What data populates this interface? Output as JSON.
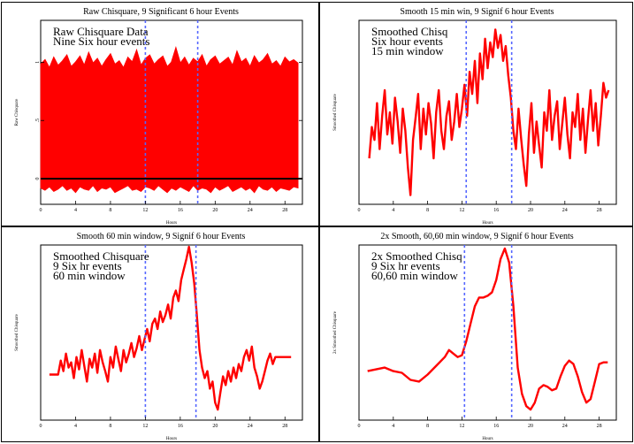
{
  "chart_data": [
    {
      "id": "p1",
      "type": "line",
      "title": "Raw Chisquare, 9 Significant 6 hour Events",
      "xlabel": "Hours",
      "ylabel": "Raw Chisquare",
      "xlim": [
        0,
        30
      ],
      "ylim": [
        -0.22,
        1.36
      ],
      "xticks": [
        0,
        4,
        8,
        12,
        16,
        20,
        24,
        28
      ],
      "xtick_labels": [
        "0",
        "4",
        "8",
        "12",
        "16",
        "20",
        "24",
        "28"
      ],
      "yticks": [
        0,
        0.5,
        1.0
      ],
      "ytick_labels": [
        "0",
        ".5",
        "1"
      ],
      "annotations": [
        "Raw Chisquare Data",
        "Nine Six hour events"
      ],
      "event_lines_x": [
        12,
        18
      ],
      "series_color": "#ff0000",
      "baseline_y": 0,
      "series": [
        {
          "x": [
            0,
            0.5,
            1,
            1.5,
            2,
            2.5,
            3,
            3.5,
            4,
            4.5,
            5,
            5.5,
            6,
            6.5,
            7,
            7.5,
            8,
            8.5,
            9,
            9.5,
            10,
            10.5,
            11,
            11.5,
            12,
            12.5,
            13,
            13.5,
            14,
            14.5,
            15,
            15.5,
            16,
            16.5,
            17,
            17.5,
            18,
            18.5,
            19,
            19.5,
            20,
            20.5,
            21,
            21.5,
            22,
            22.5,
            23,
            23.5,
            24,
            24.5,
            25,
            25.5,
            26,
            26.5,
            27,
            27.5,
            28,
            28.5,
            29,
            29.5
          ],
          "upper": [
            0.98,
            1.02,
            0.95,
            1.04,
            0.97,
            1.01,
            1.06,
            0.96,
            1.0,
            1.05,
            0.97,
            1.08,
            0.99,
            1.03,
            0.96,
            1.02,
            1.07,
            0.98,
            1.01,
            0.95,
            1.04,
            1.0,
            1.1,
            0.97,
            1.03,
            1.06,
            0.98,
            1.02,
            1.05,
            0.96,
            1.0,
            1.12,
            0.99,
            1.04,
            0.97,
            1.03,
            1.0,
            1.06,
            0.96,
            1.02,
            1.05,
            0.98,
            1.01,
            1.04,
            0.97,
            1.09,
            1.0,
            1.03,
            0.96,
            1.05,
            0.99,
            1.02,
            1.07,
            0.98,
            1.01,
            0.96,
            1.04,
            1.0,
            1.02,
            0.99
          ],
          "lower": [
            -0.08,
            -0.1,
            -0.07,
            -0.11,
            -0.09,
            -0.06,
            -0.1,
            -0.08,
            -0.12,
            -0.07,
            -0.09,
            -0.1,
            -0.06,
            -0.11,
            -0.08,
            -0.09,
            -0.07,
            -0.12,
            -0.1,
            -0.08,
            -0.06,
            -0.1,
            -0.09,
            -0.11,
            -0.07,
            -0.08,
            -0.1,
            -0.06,
            -0.09,
            -0.12,
            -0.08,
            -0.1,
            -0.07,
            -0.09,
            -0.11,
            -0.06,
            -0.1,
            -0.08,
            -0.09,
            -0.12,
            -0.07,
            -0.1,
            -0.08,
            -0.06,
            -0.11,
            -0.09,
            -0.07,
            -0.1,
            -0.08,
            -0.12,
            -0.06,
            -0.09,
            -0.1,
            -0.07,
            -0.11,
            -0.08,
            -0.09,
            -0.1,
            -0.07,
            -0.08
          ]
        }
      ]
    },
    {
      "id": "p2",
      "type": "line",
      "title": "Smooth 15 min win, 9 Signif 6 hour Events",
      "xlabel": "Hours",
      "ylabel": "Smoothed Chisquare",
      "xlim": [
        0,
        30
      ],
      "ylim": [
        0,
        1
      ],
      "xticks": [
        0,
        4,
        8,
        12,
        16,
        20,
        24,
        28
      ],
      "xtick_labels": [
        "0",
        "4",
        "8",
        "12",
        "16",
        "20",
        "24",
        "28"
      ],
      "annotations": [
        "Smoothed Chisq",
        "Six hour events",
        "15 min window"
      ],
      "event_lines_x": [
        12.5,
        17.8
      ],
      "series_color": "#ff0000",
      "series": [
        {
          "x": [
            1.2,
            1.5,
            1.8,
            2.1,
            2.4,
            2.7,
            3.0,
            3.3,
            3.6,
            3.9,
            4.2,
            4.5,
            4.8,
            5.1,
            5.4,
            5.7,
            6.0,
            6.3,
            6.6,
            6.9,
            7.2,
            7.5,
            7.8,
            8.1,
            8.4,
            8.7,
            9.0,
            9.3,
            9.6,
            9.9,
            10.2,
            10.5,
            10.8,
            11.1,
            11.4,
            11.7,
            12.0,
            12.3,
            12.6,
            12.9,
            13.2,
            13.5,
            13.8,
            14.1,
            14.4,
            14.7,
            15.0,
            15.3,
            15.6,
            15.9,
            16.2,
            16.5,
            16.8,
            17.1,
            17.4,
            17.7,
            18.0,
            18.3,
            18.6,
            18.9,
            19.2,
            19.5,
            19.8,
            20.1,
            20.4,
            20.7,
            21.0,
            21.3,
            21.6,
            21.9,
            22.2,
            22.5,
            22.8,
            23.1,
            23.4,
            23.7,
            24.0,
            24.3,
            24.6,
            24.9,
            25.2,
            25.5,
            25.8,
            26.1,
            26.4,
            26.7,
            27.0,
            27.3,
            27.6,
            27.9,
            28.2,
            28.5,
            28.8,
            29.1
          ],
          "y": [
            0.25,
            0.42,
            0.35,
            0.55,
            0.3,
            0.48,
            0.62,
            0.38,
            0.5,
            0.33,
            0.58,
            0.45,
            0.28,
            0.52,
            0.4,
            0.2,
            0.05,
            0.35,
            0.47,
            0.6,
            0.3,
            0.52,
            0.38,
            0.55,
            0.44,
            0.25,
            0.5,
            0.62,
            0.4,
            0.3,
            0.48,
            0.56,
            0.35,
            0.45,
            0.6,
            0.42,
            0.52,
            0.65,
            0.48,
            0.72,
            0.6,
            0.78,
            0.55,
            0.82,
            0.68,
            0.9,
            0.74,
            0.88,
            0.8,
            0.95,
            0.85,
            0.92,
            0.78,
            0.86,
            0.7,
            0.58,
            0.4,
            0.3,
            0.52,
            0.36,
            0.22,
            0.1,
            0.38,
            0.55,
            0.28,
            0.45,
            0.32,
            0.2,
            0.5,
            0.4,
            0.62,
            0.35,
            0.48,
            0.56,
            0.3,
            0.44,
            0.58,
            0.38,
            0.25,
            0.5,
            0.42,
            0.6,
            0.35,
            0.52,
            0.28,
            0.46,
            0.62,
            0.4,
            0.55,
            0.32,
            0.48,
            0.66,
            0.58,
            0.62
          ]
        }
      ]
    },
    {
      "id": "p3",
      "type": "line",
      "title": "Smooth 60 min window, 9 Signif 6 hour Events",
      "xlabel": "Hours",
      "ylabel": "Smoothed Chisquare",
      "xlim": [
        0,
        30
      ],
      "ylim": [
        0,
        1
      ],
      "xticks": [
        0,
        4,
        8,
        12,
        16,
        20,
        24,
        28
      ],
      "xtick_labels": [
        "0",
        "4",
        "8",
        "12",
        "16",
        "20",
        "24",
        "28"
      ],
      "annotations": [
        "Smoothed Chisquare",
        "9 Six hr events",
        "60 min window"
      ],
      "event_lines_x": [
        12,
        17.8
      ],
      "series_color": "#ff0000",
      "series": [
        {
          "x": [
            1.0,
            1.5,
            2.0,
            2.3,
            2.6,
            2.9,
            3.2,
            3.5,
            3.8,
            4.1,
            4.4,
            4.7,
            5.0,
            5.3,
            5.6,
            5.9,
            6.2,
            6.5,
            6.8,
            7.1,
            7.4,
            7.7,
            8.0,
            8.3,
            8.6,
            8.9,
            9.2,
            9.5,
            9.8,
            10.1,
            10.4,
            10.7,
            11.0,
            11.3,
            11.6,
            11.9,
            12.2,
            12.5,
            12.8,
            13.1,
            13.4,
            13.7,
            14.0,
            14.3,
            14.6,
            14.9,
            15.2,
            15.5,
            15.8,
            16.1,
            16.4,
            16.7,
            17.0,
            17.3,
            17.6,
            17.9,
            18.2,
            18.5,
            18.8,
            19.1,
            19.4,
            19.7,
            20.0,
            20.3,
            20.6,
            20.9,
            21.2,
            21.5,
            21.8,
            22.1,
            22.4,
            22.7,
            23.0,
            23.3,
            23.6,
            23.9,
            24.2,
            24.5,
            24.8,
            25.1,
            25.4,
            25.7,
            26.0,
            26.3,
            26.6,
            26.9,
            27.2,
            27.5,
            27.8,
            28.1,
            28.4,
            28.7
          ],
          "y": [
            0.26,
            0.26,
            0.26,
            0.34,
            0.28,
            0.38,
            0.3,
            0.33,
            0.24,
            0.36,
            0.29,
            0.4,
            0.31,
            0.22,
            0.35,
            0.3,
            0.38,
            0.27,
            0.4,
            0.33,
            0.28,
            0.22,
            0.36,
            0.3,
            0.42,
            0.35,
            0.28,
            0.4,
            0.33,
            0.38,
            0.44,
            0.36,
            0.41,
            0.48,
            0.4,
            0.46,
            0.52,
            0.45,
            0.55,
            0.58,
            0.52,
            0.62,
            0.56,
            0.6,
            0.66,
            0.58,
            0.7,
            0.74,
            0.68,
            0.8,
            0.86,
            0.92,
            0.99,
            0.9,
            0.78,
            0.6,
            0.4,
            0.3,
            0.24,
            0.28,
            0.18,
            0.22,
            0.1,
            0.06,
            0.16,
            0.25,
            0.2,
            0.28,
            0.22,
            0.3,
            0.24,
            0.32,
            0.28,
            0.36,
            0.4,
            0.34,
            0.42,
            0.3,
            0.25,
            0.18,
            0.22,
            0.28,
            0.34,
            0.38,
            0.32,
            0.36,
            0.36,
            0.36,
            0.36,
            0.36,
            0.36,
            0.36
          ]
        }
      ]
    },
    {
      "id": "p4",
      "type": "line",
      "title": "2x Smooth, 60,60 min window, 9 Signif 6 hour Events",
      "xlabel": "Hours",
      "ylabel": "2x Smoothed Chisquare",
      "xlim": [
        0,
        30
      ],
      "ylim": [
        0,
        1
      ],
      "xticks": [
        0,
        4,
        8,
        12,
        16,
        20,
        24,
        28
      ],
      "xtick_labels": [
        "0",
        "4",
        "8",
        "12",
        "16",
        "20",
        "24",
        "28"
      ],
      "annotations": [
        "2x Smoothed Chisq",
        "9 Six hr events",
        "60,60 min window"
      ],
      "event_lines_x": [
        12.3,
        17.8
      ],
      "series_color": "#ff0000",
      "series": [
        {
          "x": [
            1.0,
            2.0,
            3.0,
            4.0,
            5.0,
            6.0,
            7.0,
            8.0,
            9.0,
            10.0,
            10.5,
            11.0,
            11.5,
            12.0,
            12.5,
            13.0,
            13.5,
            14.0,
            14.5,
            15.0,
            15.5,
            16.0,
            16.5,
            17.0,
            17.5,
            18.0,
            18.5,
            19.0,
            19.5,
            20.0,
            20.5,
            21.0,
            21.5,
            22.0,
            22.5,
            23.0,
            23.5,
            24.0,
            24.5,
            25.0,
            25.5,
            26.0,
            26.5,
            27.0,
            27.5,
            28.0,
            28.5,
            29.0
          ],
          "y": [
            0.28,
            0.29,
            0.3,
            0.28,
            0.27,
            0.23,
            0.22,
            0.26,
            0.31,
            0.36,
            0.4,
            0.38,
            0.36,
            0.37,
            0.45,
            0.55,
            0.65,
            0.7,
            0.7,
            0.71,
            0.73,
            0.8,
            0.92,
            0.98,
            0.9,
            0.65,
            0.3,
            0.15,
            0.08,
            0.06,
            0.1,
            0.18,
            0.2,
            0.19,
            0.17,
            0.18,
            0.25,
            0.31,
            0.34,
            0.32,
            0.25,
            0.16,
            0.1,
            0.12,
            0.22,
            0.32,
            0.33,
            0.33
          ]
        }
      ]
    }
  ]
}
